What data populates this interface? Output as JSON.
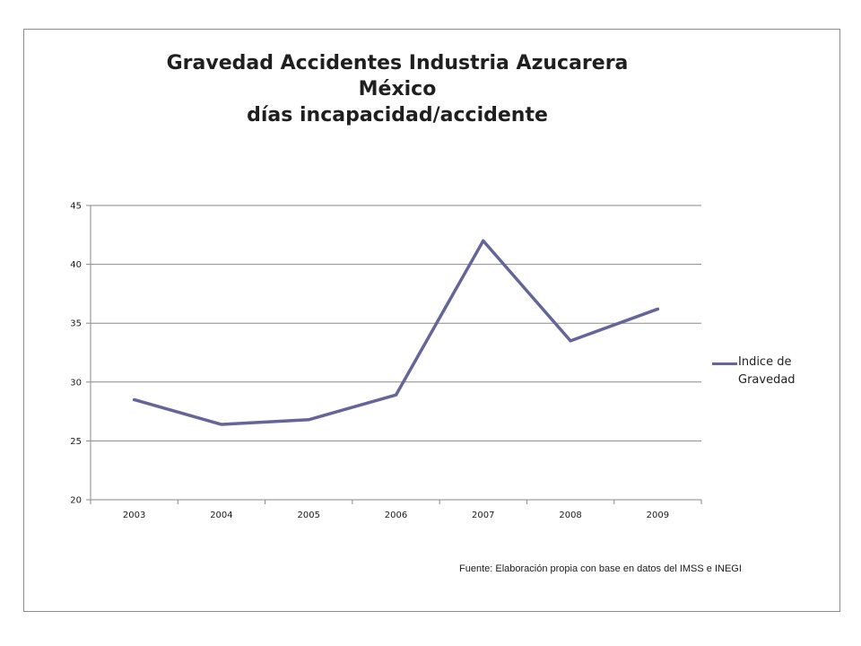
{
  "chart_data": {
    "type": "line",
    "title_lines": [
      "Gravedad Accidentes Industria Azucarera",
      "México",
      "días incapacidad/accidente"
    ],
    "categories": [
      "2003",
      "2004",
      "2005",
      "2006",
      "2007",
      "2008",
      "2009"
    ],
    "series": [
      {
        "name": "Indice de Gravedad",
        "values": [
          28.5,
          26.4,
          26.8,
          28.9,
          42.0,
          33.5,
          36.2
        ],
        "color": "#65659a"
      }
    ],
    "ylim": [
      20,
      45
    ],
    "yticks": [
      20,
      25,
      30,
      35,
      40,
      45
    ],
    "grid": true,
    "legend_position": "right"
  },
  "legend": {
    "label": "Indice de Gravedad"
  },
  "footnote": "Fuente: Elaboración propia con base en datos del IMSS e INEGI"
}
